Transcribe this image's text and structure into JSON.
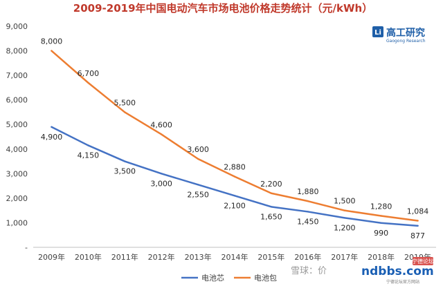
{
  "colors": {
    "cell": "#4472c4",
    "pack": "#ed7d31",
    "title": "#c0392b",
    "brand": "#1f5fa8"
  },
  "brand": {
    "logo_mark": "Li",
    "name": "高工研究",
    "subtitle": "Gaogong Research"
  },
  "watermark": {
    "left": "雪球：价",
    "right": "ndbbs.com",
    "badge": "宁德论坛",
    "tagline": "宁德论坛官方网站"
  },
  "chart_data": {
    "type": "line",
    "title": "2009-2019年中国电动汽车市场电池价格走势统计（元/kWh）",
    "xlabel": "",
    "ylabel": "",
    "categories": [
      "2009年",
      "2010年",
      "2011年",
      "2012年",
      "2013年",
      "2014年",
      "2015年",
      "2016年",
      "2017年",
      "2018年",
      "2019年"
    ],
    "ylim": [
      0,
      9000
    ],
    "yticks": [
      0,
      1000,
      2000,
      3000,
      4000,
      5000,
      6000,
      7000,
      8000,
      9000
    ],
    "ytick_labels": [
      "-",
      "1,000",
      "2,000",
      "3,000",
      "4,000",
      "5,000",
      "6,000",
      "7,000",
      "8,000",
      "9,000"
    ],
    "grid": false,
    "legend_position": "bottom",
    "series": [
      {
        "name": "电池芯",
        "color": "#4472c4",
        "values": [
          4900,
          4150,
          3500,
          3000,
          2550,
          2100,
          1650,
          1450,
          1200,
          990,
          877
        ],
        "labels": [
          "4,900",
          "4,150",
          "3,500",
          "3,000",
          "2,550",
          "2,100",
          "1,650",
          "1,450",
          "1,200",
          "990",
          "877"
        ]
      },
      {
        "name": "电池包",
        "color": "#ed7d31",
        "values": [
          8000,
          6700,
          5500,
          4600,
          3600,
          2880,
          2200,
          1880,
          1500,
          1280,
          1084
        ],
        "labels": [
          "8,000",
          "6,700",
          "5,500",
          "4,600",
          "3,600",
          "2,880",
          "2,200",
          "1,880",
          "1,500",
          "1,280",
          "1,084"
        ]
      }
    ]
  }
}
